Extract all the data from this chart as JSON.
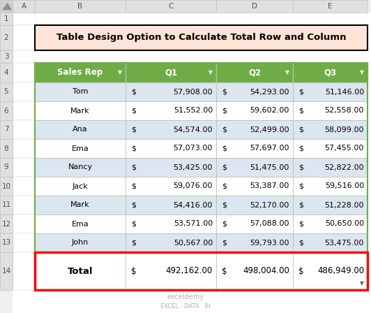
{
  "title": "Table Design Option to Calculate Total Row and Column",
  "headers": [
    "Sales Rep",
    "Q1",
    "Q2",
    "Q3"
  ],
  "rows": [
    [
      "Tom",
      "$ 57,908.00",
      "$ 54,293.00",
      "$ 51,146.00"
    ],
    [
      "Mark",
      "$ 51,552.00",
      "$ 59,602.00",
      "$ 52,558.00"
    ],
    [
      "Ana",
      "$ 54,574.00",
      "$ 52,499.00",
      "$ 58,099.00"
    ],
    [
      "Ema",
      "$ 57,073.00",
      "$ 57,697.00",
      "$ 57,455.00"
    ],
    [
      "Nancy",
      "$ 53,425.00",
      "$ 51,475.00",
      "$ 52,822.00"
    ],
    [
      "Jack",
      "$ 59,076.00",
      "$ 53,387.00",
      "$ 59,516.00"
    ],
    [
      "Mark",
      "$ 54,416.00",
      "$ 52,170.00",
      "$ 51,228.00"
    ],
    [
      "Ema",
      "$ 53,571.00",
      "$ 57,088.00",
      "$ 50,650.00"
    ],
    [
      "John",
      "$ 50,567.00",
      "$ 59,793.00",
      "$ 53,475.00"
    ]
  ],
  "total_row": [
    "Total",
    "$ 492,162.00",
    "$ 498,004.00",
    "$ 486,949.00"
  ],
  "header_bg": "#6fac46",
  "header_text": "#ffffff",
  "row_odd_bg": "#dce6f1",
  "row_even_bg": "#ffffff",
  "total_bg": "#ffffff",
  "total_border_color": "#ff0000",
  "title_bg": "#fce4d6",
  "title_border": "#000000",
  "grid_color": "#a9c4a0",
  "outer_border": "#6fac46",
  "figsize": [
    5.32,
    4.48
  ],
  "dpi": 100,
  "watermark_line1": "exceldemy",
  "watermark_line2": "EXCEL · DATA · BI",
  "watermark_color": "#b0b0b0",
  "excel_label_bg": "#e0e0e0",
  "excel_label_fg": "#505050",
  "excel_corner_bg": "#d0d0d0"
}
